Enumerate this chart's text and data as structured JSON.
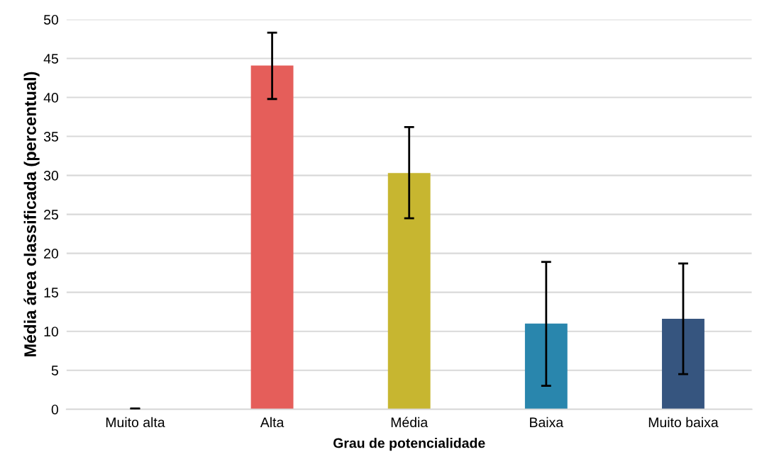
{
  "chart_data": {
    "type": "bar",
    "xlabel": "Grau de potencialidade",
    "ylabel": "Média área classificada (percentual)",
    "categories": [
      "Muito alta",
      "Alta",
      "Média",
      "Baixa",
      "Muito baixa"
    ],
    "values": [
      0,
      44.1,
      30.3,
      11.0,
      11.6
    ],
    "colors": [
      "#f2a541",
      "#e55e5a",
      "#c7b630",
      "#2986ad",
      "#36557f"
    ],
    "errors": [
      [
        0,
        0.1
      ],
      [
        39.8,
        48.3
      ],
      [
        24.5,
        36.2
      ],
      [
        3.0,
        18.9
      ],
      [
        4.5,
        18.7
      ]
    ],
    "ylim": [
      0,
      50
    ],
    "yticks": [
      0,
      5,
      10,
      15,
      20,
      25,
      30,
      35,
      40,
      45,
      50
    ],
    "grid": "y"
  }
}
